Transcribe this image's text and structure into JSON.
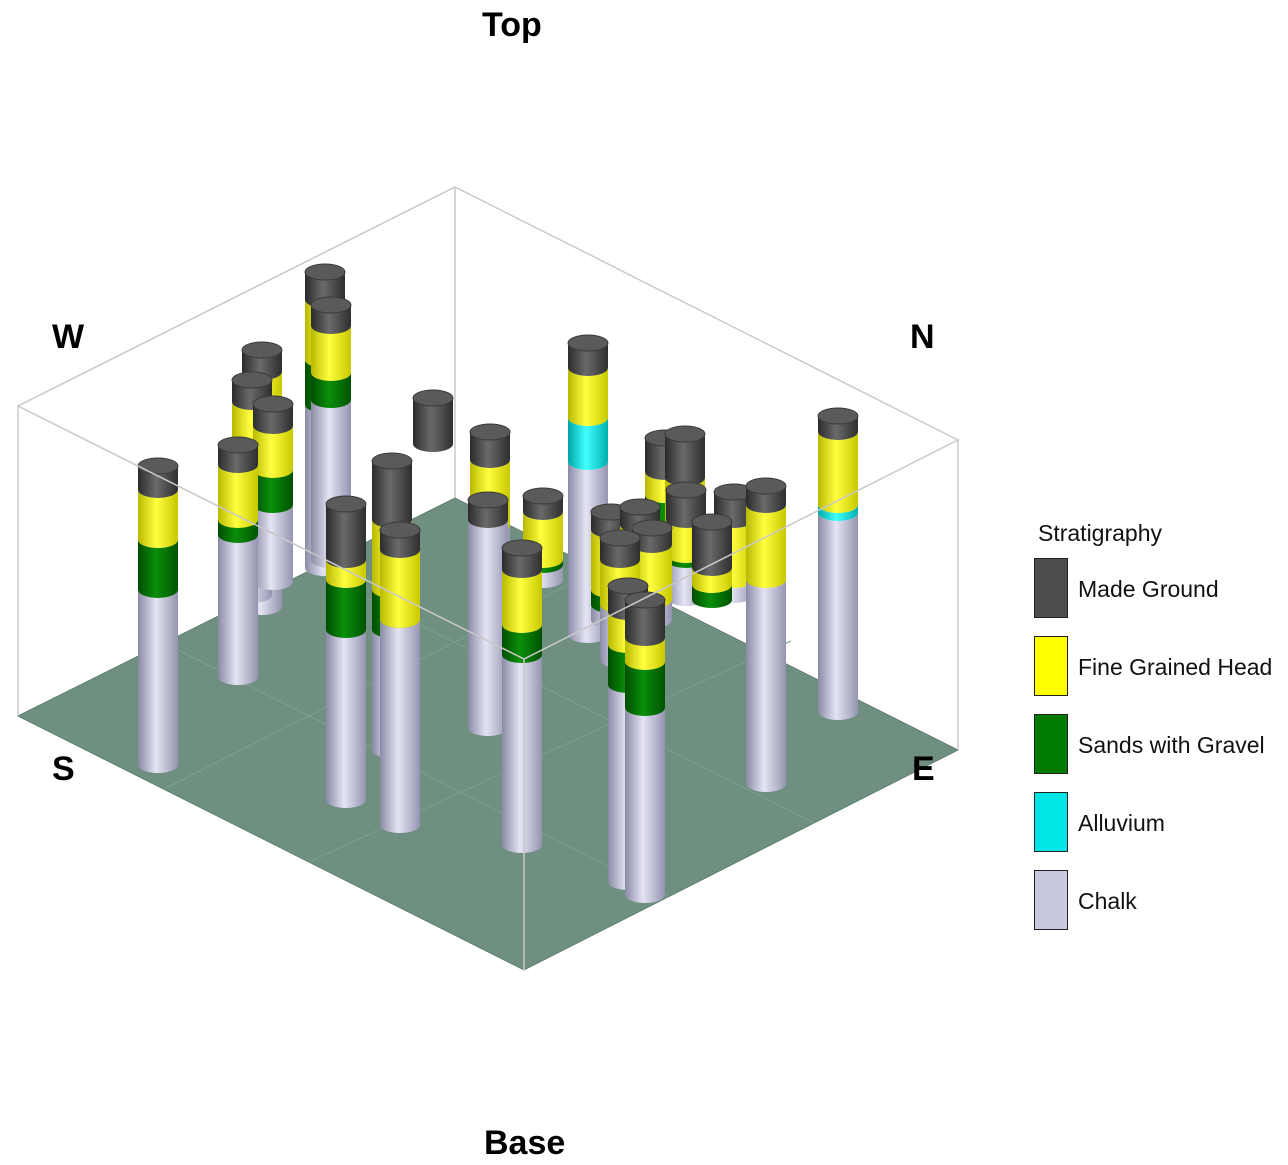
{
  "view": {
    "top_label": "Top",
    "base_label": "Base"
  },
  "compass": {
    "west": "W",
    "north": "N",
    "south": "S",
    "east": "E"
  },
  "legend": {
    "title": "Stratigraphy",
    "items": [
      {
        "label": "Made Ground",
        "color": "#4d4d4d"
      },
      {
        "label": "Fine Grained Head",
        "color": "#ffff00"
      },
      {
        "label": "Sands with Gravel",
        "color": "#007a00"
      },
      {
        "label": "Alluvium",
        "color": "#00e5e5"
      },
      {
        "label": "Chalk",
        "color": "#c8c8e0"
      }
    ]
  },
  "colors": {
    "ground_plane": "#6f8f80",
    "box_edges": "#c8c8c8"
  }
}
